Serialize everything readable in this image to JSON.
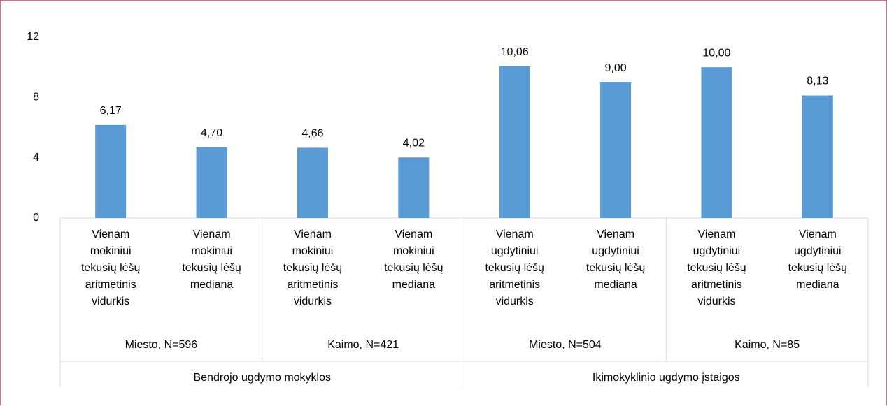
{
  "chart_data": {
    "type": "bar",
    "categories": [
      "Vienam mokiniui tekusių lėšų aritmetinis vidurkis",
      "Vienam mokiniui tekusių lėšų mediana",
      "Vienam mokiniui tekusių lėšų aritmetinis vidurkis",
      "Vienam mokiniui tekusių lėšų mediana",
      "Vienam ugdytiniui tekusių lėšų aritmetinis vidurkis",
      "Vienam ugdytiniui tekusių lėšų mediana",
      "Vienam ugdytiniui tekusių lėšų aritmetinis vidurkis",
      "Vienam ugdytiniui tekusių lėšų mediana"
    ],
    "values": [
      6.17,
      4.7,
      4.66,
      4.02,
      10.06,
      9.0,
      10.0,
      8.13
    ],
    "value_labels": [
      "6,17",
      "4,70",
      "4,66",
      "4,02",
      "10,06",
      "9,00",
      "10,00",
      "8,13"
    ],
    "subgroups": [
      "Miesto, N=596",
      "Kaimo, N=421",
      "Miesto, N=504",
      "Kaimo, N=85"
    ],
    "groups": [
      "Bendrojo ugdymo mokyklos",
      "Ikimokyklinio ugdymo įstaigos"
    ],
    "color": "#5b9bd5",
    "ylim": [
      0,
      12
    ],
    "yticks": [
      0,
      4,
      8,
      12
    ],
    "grid": false
  }
}
